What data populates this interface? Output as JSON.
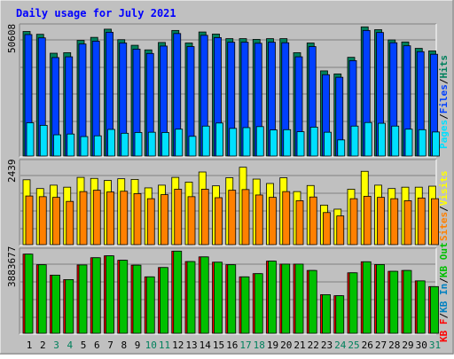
{
  "chart_data": [
    {
      "type": "bar",
      "title": "Daily usage for July 2021",
      "panel": "hits-files-pages",
      "categories": [
        "1",
        "2",
        "3",
        "4",
        "5",
        "6",
        "7",
        "8",
        "9",
        "10",
        "11",
        "12",
        "13",
        "14",
        "15",
        "16",
        "17",
        "18",
        "19",
        "20",
        "21",
        "22",
        "23",
        "24",
        "25",
        "26",
        "27",
        "28",
        "29",
        "30",
        "31"
      ],
      "weekend_days": [
        "3",
        "4",
        "10",
        "11",
        "17",
        "18",
        "24",
        "25",
        "31"
      ],
      "max_label": "50608",
      "ylim": [
        0,
        50608
      ],
      "series": [
        {
          "name": "Hits",
          "values": [
            48700,
            47600,
            40200,
            40400,
            45200,
            46400,
            49600,
            45500,
            43300,
            41500,
            44400,
            49100,
            44200,
            48500,
            47700,
            45900,
            45900,
            45600,
            45900,
            45900,
            40400,
            44200,
            33300,
            32100,
            38600,
            50500,
            49400,
            45400,
            44600,
            42100,
            41100
          ]
        },
        {
          "name": "Files",
          "values": [
            47500,
            46200,
            38500,
            38800,
            43800,
            44900,
            48400,
            44200,
            41800,
            40100,
            43000,
            47900,
            42800,
            47200,
            46300,
            44500,
            44500,
            44100,
            44500,
            44300,
            38800,
            42800,
            31800,
            30800,
            37300,
            49100,
            48300,
            44300,
            43100,
            40800,
            39800
          ]
        },
        {
          "name": "Pages",
          "values": [
            13000,
            12000,
            8300,
            8600,
            7600,
            7900,
            10400,
            8900,
            9200,
            9300,
            9200,
            10500,
            7700,
            11700,
            12900,
            10800,
            11100,
            11500,
            10200,
            10300,
            9500,
            11300,
            9300,
            6300,
            11700,
            13100,
            12800,
            11700,
            10500,
            10300,
            9400
          ]
        }
      ]
    },
    {
      "type": "bar",
      "panel": "visits-sites",
      "categories": [
        "1",
        "2",
        "3",
        "4",
        "5",
        "6",
        "7",
        "8",
        "9",
        "10",
        "11",
        "12",
        "13",
        "14",
        "15",
        "16",
        "17",
        "18",
        "19",
        "20",
        "21",
        "22",
        "23",
        "24",
        "25",
        "26",
        "27",
        "28",
        "29",
        "30",
        "31"
      ],
      "max_label": "2439",
      "ylim": [
        0,
        2439
      ],
      "series": [
        {
          "name": "Visits",
          "values": [
            1920,
            1660,
            1760,
            1700,
            1990,
            1960,
            1900,
            1950,
            1930,
            1680,
            1760,
            1990,
            1850,
            2150,
            1740,
            1980,
            2290,
            1940,
            1810,
            1980,
            1570,
            1750,
            1170,
            1050,
            1640,
            2170,
            1760,
            1660,
            1700,
            1700,
            1730
          ]
        },
        {
          "name": "Sites",
          "values": [
            1440,
            1420,
            1400,
            1280,
            1570,
            1610,
            1560,
            1580,
            1510,
            1360,
            1480,
            1640,
            1420,
            1640,
            1390,
            1610,
            1630,
            1470,
            1400,
            1570,
            1300,
            1410,
            950,
            850,
            1360,
            1430,
            1400,
            1360,
            1300,
            1380,
            1360
          ]
        }
      ]
    },
    {
      "type": "bar",
      "panel": "kbytes",
      "categories": [
        "1",
        "2",
        "3",
        "4",
        "5",
        "6",
        "7",
        "8",
        "9",
        "10",
        "11",
        "12",
        "13",
        "14",
        "15",
        "16",
        "17",
        "18",
        "19",
        "20",
        "21",
        "22",
        "23",
        "24",
        "25",
        "26",
        "27",
        "28",
        "29",
        "30",
        "31"
      ],
      "max_label": "3883677",
      "ylim": [
        0,
        3883677
      ],
      "series": [
        {
          "name": "KB F",
          "values": [
            3730000,
            3230000,
            2740000,
            2530000,
            3220000,
            3560000,
            3650000,
            3440000,
            3210000,
            2660000,
            3100000,
            3870000,
            3380000,
            3600000,
            3350000,
            3230000,
            2660000,
            2810000,
            3400000,
            3260000,
            3260000,
            2960000,
            1820000,
            1770000,
            2850000,
            3370000,
            3240000,
            2920000,
            2960000,
            2470000,
            2200000
          ]
        },
        {
          "name": "KB In",
          "values": [
            3730000,
            3230000,
            2740000,
            2530000,
            3220000,
            3560000,
            3650000,
            3440000,
            3210000,
            2660000,
            3100000,
            3870000,
            3380000,
            3600000,
            3350000,
            3230000,
            2660000,
            2810000,
            3400000,
            3260000,
            3260000,
            2960000,
            1820000,
            1770000,
            2850000,
            3370000,
            3240000,
            2920000,
            2960000,
            2470000,
            2200000
          ]
        },
        {
          "name": "KB Out",
          "values": [
            3730000,
            3230000,
            2740000,
            2530000,
            3220000,
            3560000,
            3650000,
            3440000,
            3210000,
            2660000,
            3100000,
            3870000,
            3380000,
            3600000,
            3350000,
            3230000,
            2660000,
            2810000,
            3400000,
            3260000,
            3260000,
            2960000,
            1820000,
            1770000,
            2850000,
            3370000,
            3240000,
            2920000,
            2960000,
            2470000,
            2200000
          ]
        }
      ]
    }
  ],
  "legend_top": [
    "Pages",
    "/",
    "Files",
    "/",
    "Hits"
  ],
  "legend_mid": [
    "Sites",
    "/",
    "Visits"
  ],
  "legend_bot": [
    "KB F",
    "/",
    "KB In",
    "/",
    "KB Out"
  ],
  "colors": {
    "hits": "#00805c",
    "files": "#0040ff",
    "pages": "#00e0ff",
    "visits": "#ffff00",
    "sites": "#ff8000",
    "kb_in": "#0080c0",
    "kb_out": "#00c000",
    "kb_f": "#ff0000",
    "title": "#0000ff",
    "weekend": "#00805c",
    "panel_bg": "#c0c0c0"
  }
}
